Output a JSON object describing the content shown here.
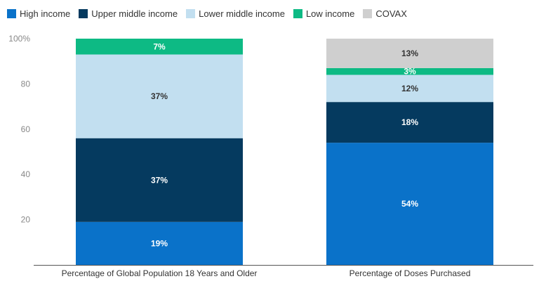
{
  "chart_data": {
    "type": "bar",
    "stacked": true,
    "title": "",
    "xlabel": "",
    "ylabel": "",
    "ylim": [
      0,
      100
    ],
    "y_ticks": [
      {
        "value": 20,
        "label": "20"
      },
      {
        "value": 40,
        "label": "40"
      },
      {
        "value": 60,
        "label": "60"
      },
      {
        "value": 80,
        "label": "80"
      },
      {
        "value": 100,
        "label": "100%"
      }
    ],
    "grid": false,
    "legend_position": "top-left",
    "categories": [
      "Percentage of Global Population 18 Years and Older",
      "Percentage of Doses Purchased"
    ],
    "series": [
      {
        "name": "High income",
        "color": "#0a72c9",
        "label_color": "#ffffff",
        "values": [
          19,
          54
        ],
        "labels": [
          "19%",
          "54%"
        ]
      },
      {
        "name": "Upper middle income",
        "color": "#053a5f",
        "label_color": "#ffffff",
        "values": [
          37,
          18
        ],
        "labels": [
          "37%",
          "18%"
        ]
      },
      {
        "name": "Lower middle income",
        "color": "#c2dff0",
        "label_color": "#333333",
        "values": [
          37,
          12
        ],
        "labels": [
          "37%",
          "12%"
        ]
      },
      {
        "name": "Low income",
        "color": "#0dba84",
        "label_color": "#ffffff",
        "values": [
          7,
          3
        ],
        "labels": [
          "7%",
          "3%"
        ]
      },
      {
        "name": "COVAX",
        "color": "#cfcfcf",
        "label_color": "#333333",
        "values": [
          0,
          13
        ],
        "labels": [
          "",
          "13%"
        ]
      }
    ]
  }
}
